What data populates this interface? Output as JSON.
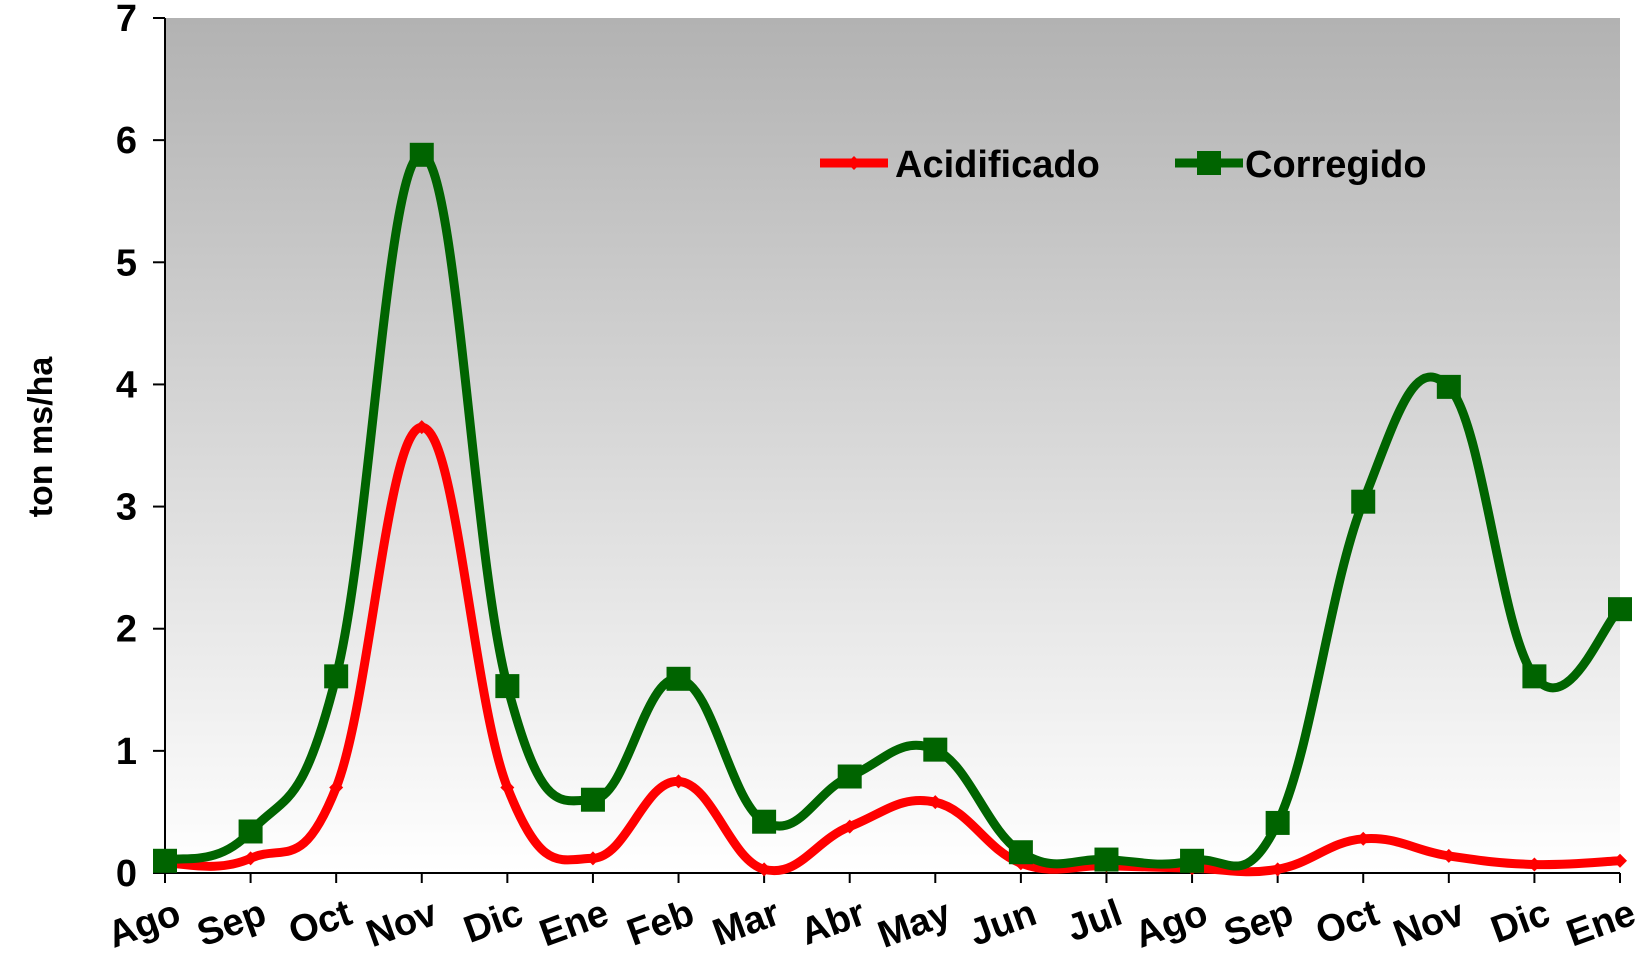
{
  "chart_data": {
    "type": "line",
    "title": "",
    "xlabel": "",
    "ylabel": "ton ms/ha",
    "ylim": [
      0,
      7
    ],
    "yticks": [
      "0",
      "1",
      "2",
      "3",
      "4",
      "5",
      "6",
      "7"
    ],
    "categories": [
      "Ago",
      "Sep",
      "Oct",
      "Nov",
      "Dic",
      "Ene",
      "Feb",
      "Mar",
      "Abr",
      "May",
      "Jun",
      "Jul",
      "Ago",
      "Sep",
      "Oct",
      "Nov",
      "Dic",
      "Ene"
    ],
    "series": [
      {
        "name": "Acidificado",
        "color": "#ff0000",
        "marker": "diamond",
        "values": [
          0.08,
          0.12,
          0.7,
          3.65,
          0.7,
          0.12,
          0.75,
          0.03,
          0.38,
          0.58,
          0.08,
          0.06,
          0.04,
          0.03,
          0.28,
          0.14,
          0.07,
          0.1
        ]
      },
      {
        "name": "Corregido",
        "color": "#006400",
        "marker": "square",
        "values": [
          0.1,
          0.34,
          1.61,
          5.88,
          1.53,
          0.6,
          1.59,
          0.42,
          0.79,
          1.01,
          0.17,
          0.11,
          0.1,
          0.41,
          3.04,
          3.98,
          1.61,
          2.16
        ]
      }
    ],
    "legend": {
      "position": "top-right"
    },
    "background": {
      "gradient_top": "#b2b2b2",
      "gradient_bottom": "#ffffff"
    },
    "grid": false
  }
}
